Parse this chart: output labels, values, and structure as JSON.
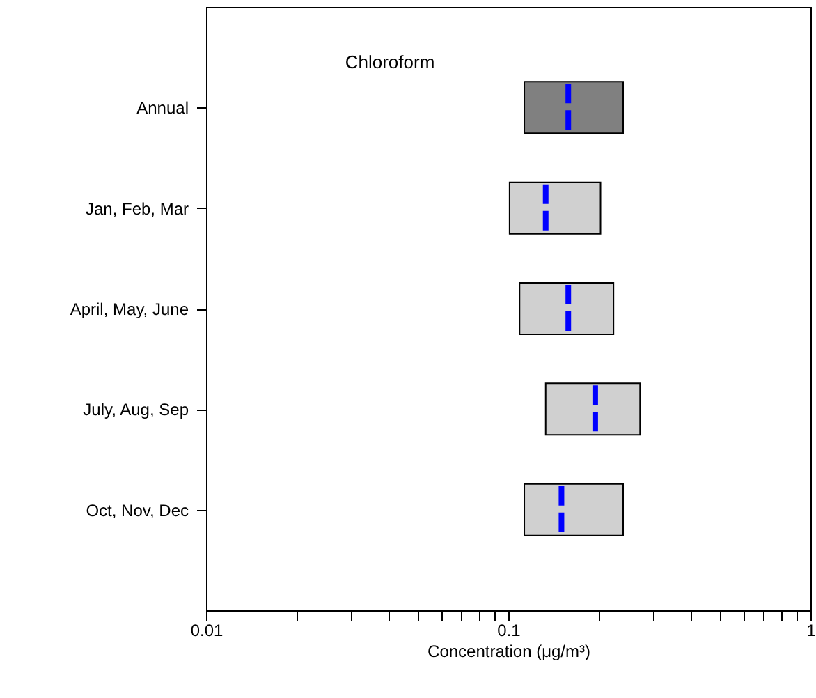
{
  "chart_data": {
    "type": "box",
    "title": "Chloroform",
    "xlabel": "Concentration (μg/m³)",
    "orientation": "horizontal",
    "log": "x",
    "categories": [
      "Annual",
      "Jan, Feb, Mar",
      "April, May, June",
      "July, Aug, Sep",
      "Oct, Nov, Dec"
    ],
    "colors": [
      "#808080",
      "#d0d0d0",
      "#d0d0d0",
      "#d0d0d0",
      "#d0d0d0"
    ],
    "boxes": [
      {
        "low": 0.113,
        "q1": 0.113,
        "median": 0.158,
        "q3": 0.24,
        "high": 0.24
      },
      {
        "low": 0.101,
        "q1": 0.101,
        "median": 0.133,
        "q3": 0.202,
        "high": 0.202
      },
      {
        "low": 0.109,
        "q1": 0.109,
        "median": 0.158,
        "q3": 0.223,
        "high": 0.223
      },
      {
        "low": 0.133,
        "q1": 0.133,
        "median": 0.194,
        "q3": 0.273,
        "high": 0.273
      },
      {
        "low": 0.113,
        "q1": 0.113,
        "median": 0.15,
        "q3": 0.24,
        "high": 0.24
      }
    ],
    "xlim": [
      0.01,
      1
    ],
    "xticks": [
      0.01,
      {
        "value": 0.02,
        "label": null
      },
      {
        "value": 0.03,
        "label": null
      },
      {
        "value": 0.04,
        "label": null
      },
      {
        "value": 0.05,
        "label": null
      },
      {
        "value": 0.06,
        "label": null
      },
      {
        "value": 0.07,
        "label": null
      },
      {
        "value": 0.08,
        "label": null
      },
      {
        "value": 0.09,
        "label": null
      },
      0.1,
      {
        "value": 0.2,
        "label": null
      },
      {
        "value": 0.3,
        "label": null
      },
      {
        "value": 0.4,
        "label": null
      },
      {
        "value": 0.5,
        "label": null
      },
      {
        "value": 0.6,
        "label": null
      },
      {
        "value": 0.7,
        "label": null
      },
      {
        "value": 0.8,
        "label": null
      },
      {
        "value": 0.9,
        "label": null
      },
      1
    ],
    "grid": false
  }
}
